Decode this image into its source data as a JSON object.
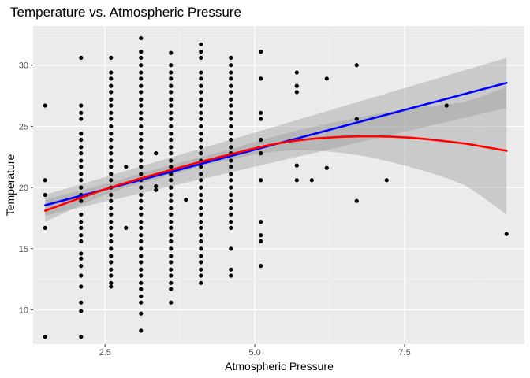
{
  "chart_data": {
    "type": "scatter",
    "title": "Temperature vs. Atmospheric Pressure",
    "xlabel": "Atmospheric Pressure",
    "ylabel": "Temperature",
    "xlim": [
      1.3,
      9.5
    ],
    "ylim": [
      7.2,
      33.2
    ],
    "x_ticks": [
      2.5,
      5.0,
      7.5
    ],
    "x_tick_labels": [
      "2.5",
      "5.0",
      "7.5"
    ],
    "y_ticks": [
      10,
      15,
      20,
      25,
      30
    ],
    "y_tick_labels": [
      "10",
      "15",
      "20",
      "25",
      "30"
    ],
    "grid": true,
    "background_color": "#ebebeb",
    "point_color": "#000000",
    "series": [
      {
        "kind": "points",
        "points": [
          [
            1.5,
            7.8
          ],
          [
            1.5,
            16.7
          ],
          [
            1.5,
            19.4
          ],
          [
            1.5,
            20.6
          ],
          [
            1.5,
            26.7
          ],
          [
            2.1,
            7.8
          ],
          [
            2.1,
            9.9
          ],
          [
            2.1,
            10.6
          ],
          [
            2.1,
            11.9
          ],
          [
            2.1,
            12.8
          ],
          [
            2.1,
            13.6
          ],
          [
            2.1,
            14.2
          ],
          [
            2.1,
            14.6
          ],
          [
            2.1,
            15.6
          ],
          [
            2.1,
            16.1
          ],
          [
            2.1,
            16.7
          ],
          [
            2.1,
            17.2
          ],
          [
            2.1,
            17.8
          ],
          [
            2.1,
            18.9
          ],
          [
            2.1,
            19.4
          ],
          [
            2.1,
            20.0
          ],
          [
            2.1,
            20.6
          ],
          [
            2.1,
            21.1
          ],
          [
            2.1,
            21.7
          ],
          [
            2.1,
            22.2
          ],
          [
            2.1,
            22.8
          ],
          [
            2.1,
            23.3
          ],
          [
            2.1,
            23.9
          ],
          [
            2.1,
            24.4
          ],
          [
            2.1,
            25.6
          ],
          [
            2.1,
            26.1
          ],
          [
            2.1,
            26.7
          ],
          [
            2.1,
            30.6
          ],
          [
            2.6,
            11.9
          ],
          [
            2.6,
            12.2
          ],
          [
            2.6,
            12.8
          ],
          [
            2.6,
            13.3
          ],
          [
            2.6,
            13.9
          ],
          [
            2.6,
            14.4
          ],
          [
            2.6,
            15.0
          ],
          [
            2.6,
            15.6
          ],
          [
            2.6,
            16.1
          ],
          [
            2.6,
            16.7
          ],
          [
            2.6,
            17.2
          ],
          [
            2.6,
            17.8
          ],
          [
            2.6,
            18.3
          ],
          [
            2.6,
            18.9
          ],
          [
            2.6,
            19.4
          ],
          [
            2.6,
            20.0
          ],
          [
            2.6,
            20.6
          ],
          [
            2.6,
            21.1
          ],
          [
            2.6,
            21.7
          ],
          [
            2.6,
            22.2
          ],
          [
            2.6,
            22.8
          ],
          [
            2.6,
            23.3
          ],
          [
            2.6,
            23.9
          ],
          [
            2.6,
            24.4
          ],
          [
            2.6,
            25.0
          ],
          [
            2.6,
            25.6
          ],
          [
            2.6,
            26.1
          ],
          [
            2.6,
            26.7
          ],
          [
            2.6,
            27.2
          ],
          [
            2.6,
            27.8
          ],
          [
            2.6,
            28.3
          ],
          [
            2.6,
            28.9
          ],
          [
            2.6,
            29.4
          ],
          [
            2.6,
            30.6
          ],
          [
            2.85,
            16.7
          ],
          [
            2.85,
            21.7
          ],
          [
            3.1,
            8.3
          ],
          [
            3.1,
            9.7
          ],
          [
            3.1,
            10.6
          ],
          [
            3.1,
            11.1
          ],
          [
            3.1,
            11.7
          ],
          [
            3.1,
            12.2
          ],
          [
            3.1,
            12.8
          ],
          [
            3.1,
            13.3
          ],
          [
            3.1,
            13.9
          ],
          [
            3.1,
            14.4
          ],
          [
            3.1,
            15.0
          ],
          [
            3.1,
            15.6
          ],
          [
            3.1,
            16.1
          ],
          [
            3.1,
            16.7
          ],
          [
            3.1,
            17.2
          ],
          [
            3.1,
            17.8
          ],
          [
            3.1,
            18.3
          ],
          [
            3.1,
            18.9
          ],
          [
            3.1,
            19.4
          ],
          [
            3.1,
            20.0
          ],
          [
            3.1,
            20.6
          ],
          [
            3.1,
            21.1
          ],
          [
            3.1,
            21.7
          ],
          [
            3.1,
            22.2
          ],
          [
            3.1,
            22.8
          ],
          [
            3.1,
            23.3
          ],
          [
            3.1,
            23.9
          ],
          [
            3.1,
            24.4
          ],
          [
            3.1,
            25.0
          ],
          [
            3.1,
            25.6
          ],
          [
            3.1,
            26.1
          ],
          [
            3.1,
            26.7
          ],
          [
            3.1,
            27.2
          ],
          [
            3.1,
            27.8
          ],
          [
            3.1,
            28.3
          ],
          [
            3.1,
            28.9
          ],
          [
            3.1,
            29.4
          ],
          [
            3.1,
            30.0
          ],
          [
            3.1,
            30.6
          ],
          [
            3.1,
            31.1
          ],
          [
            3.1,
            32.2
          ],
          [
            3.35,
            19.8
          ],
          [
            3.35,
            20.1
          ],
          [
            3.35,
            22.8
          ],
          [
            3.6,
            10.6
          ],
          [
            3.6,
            11.7
          ],
          [
            3.6,
            12.2
          ],
          [
            3.6,
            12.8
          ],
          [
            3.6,
            13.3
          ],
          [
            3.6,
            13.9
          ],
          [
            3.6,
            14.4
          ],
          [
            3.6,
            15.0
          ],
          [
            3.6,
            15.6
          ],
          [
            3.6,
            16.1
          ],
          [
            3.6,
            16.7
          ],
          [
            3.6,
            17.2
          ],
          [
            3.6,
            17.8
          ],
          [
            3.6,
            18.3
          ],
          [
            3.6,
            18.9
          ],
          [
            3.6,
            19.4
          ],
          [
            3.6,
            20.0
          ],
          [
            3.6,
            20.6
          ],
          [
            3.6,
            21.1
          ],
          [
            3.6,
            21.7
          ],
          [
            3.6,
            22.2
          ],
          [
            3.6,
            22.8
          ],
          [
            3.6,
            23.3
          ],
          [
            3.6,
            23.9
          ],
          [
            3.6,
            24.4
          ],
          [
            3.6,
            25.0
          ],
          [
            3.6,
            25.6
          ],
          [
            3.6,
            26.1
          ],
          [
            3.6,
            26.7
          ],
          [
            3.6,
            27.2
          ],
          [
            3.6,
            27.8
          ],
          [
            3.6,
            28.3
          ],
          [
            3.6,
            28.9
          ],
          [
            3.6,
            29.4
          ],
          [
            3.6,
            30.0
          ],
          [
            3.6,
            31.0
          ],
          [
            3.85,
            19.0
          ],
          [
            3.85,
            21.7
          ],
          [
            4.1,
            12.2
          ],
          [
            4.1,
            12.8
          ],
          [
            4.1,
            13.3
          ],
          [
            4.1,
            13.9
          ],
          [
            4.1,
            14.4
          ],
          [
            4.1,
            15.0
          ],
          [
            4.1,
            15.6
          ],
          [
            4.1,
            16.1
          ],
          [
            4.1,
            16.7
          ],
          [
            4.1,
            17.2
          ],
          [
            4.1,
            17.8
          ],
          [
            4.1,
            18.3
          ],
          [
            4.1,
            18.9
          ],
          [
            4.1,
            19.4
          ],
          [
            4.1,
            20.0
          ],
          [
            4.1,
            20.6
          ],
          [
            4.1,
            21.1
          ],
          [
            4.1,
            21.7
          ],
          [
            4.1,
            22.2
          ],
          [
            4.1,
            22.8
          ],
          [
            4.1,
            23.3
          ],
          [
            4.1,
            23.9
          ],
          [
            4.1,
            24.4
          ],
          [
            4.1,
            25.0
          ],
          [
            4.1,
            25.6
          ],
          [
            4.1,
            26.1
          ],
          [
            4.1,
            26.7
          ],
          [
            4.1,
            27.2
          ],
          [
            4.1,
            27.8
          ],
          [
            4.1,
            28.3
          ],
          [
            4.1,
            28.9
          ],
          [
            4.1,
            29.4
          ],
          [
            4.1,
            30.6
          ],
          [
            4.1,
            31.1
          ],
          [
            4.1,
            31.7
          ],
          [
            4.6,
            12.8
          ],
          [
            4.6,
            13.3
          ],
          [
            4.6,
            15.0
          ],
          [
            4.6,
            16.7
          ],
          [
            4.6,
            17.2
          ],
          [
            4.6,
            17.8
          ],
          [
            4.6,
            18.3
          ],
          [
            4.6,
            18.9
          ],
          [
            4.6,
            19.4
          ],
          [
            4.6,
            20.0
          ],
          [
            4.6,
            20.6
          ],
          [
            4.6,
            21.1
          ],
          [
            4.6,
            21.7
          ],
          [
            4.6,
            22.2
          ],
          [
            4.6,
            22.8
          ],
          [
            4.6,
            23.3
          ],
          [
            4.6,
            23.9
          ],
          [
            4.6,
            24.4
          ],
          [
            4.6,
            25.0
          ],
          [
            4.6,
            25.6
          ],
          [
            4.6,
            26.1
          ],
          [
            4.6,
            26.7
          ],
          [
            4.6,
            27.2
          ],
          [
            4.6,
            27.8
          ],
          [
            4.6,
            28.3
          ],
          [
            4.6,
            28.9
          ],
          [
            4.6,
            29.4
          ],
          [
            4.6,
            30.0
          ],
          [
            4.6,
            30.6
          ],
          [
            5.1,
            13.6
          ],
          [
            5.1,
            15.6
          ],
          [
            5.1,
            16.1
          ],
          [
            5.1,
            17.2
          ],
          [
            5.1,
            20.6
          ],
          [
            5.1,
            22.8
          ],
          [
            5.1,
            23.9
          ],
          [
            5.1,
            25.6
          ],
          [
            5.1,
            26.1
          ],
          [
            5.1,
            28.9
          ],
          [
            5.1,
            31.1
          ],
          [
            5.7,
            20.6
          ],
          [
            5.7,
            21.8
          ],
          [
            5.7,
            27.8
          ],
          [
            5.7,
            28.3
          ],
          [
            5.7,
            29.4
          ],
          [
            5.95,
            20.6
          ],
          [
            6.2,
            21.6
          ],
          [
            6.2,
            28.9
          ],
          [
            6.7,
            18.9
          ],
          [
            6.7,
            25.6
          ],
          [
            6.7,
            30.0
          ],
          [
            7.2,
            20.6
          ],
          [
            8.2,
            26.7
          ],
          [
            9.2,
            16.2
          ]
        ]
      },
      {
        "kind": "lm-fit",
        "color": "#0000ff",
        "band_color": "#999999",
        "x": [
          1.5,
          9.2
        ],
        "y": [
          18.55,
          28.55
        ],
        "band_lower": [
          17.7,
          26.5
        ],
        "band_upper": [
          19.4,
          30.6
        ]
      },
      {
        "kind": "smooth-fit",
        "color": "#ff0000",
        "band_color": "#999999",
        "x": [
          1.5,
          2.5,
          3.5,
          4.5,
          5.5,
          6.5,
          7.5,
          8.5,
          9.2
        ],
        "y": [
          18.1,
          19.85,
          21.3,
          22.6,
          23.7,
          24.15,
          24.1,
          23.6,
          23.0
        ],
        "band_lower": [
          17.2,
          19.4,
          20.9,
          22.2,
          23.0,
          22.8,
          21.8,
          20.2,
          17.8
        ],
        "band_upper": [
          19.0,
          20.3,
          21.7,
          23.0,
          24.4,
          25.5,
          26.4,
          27.0,
          28.2
        ]
      }
    ]
  }
}
